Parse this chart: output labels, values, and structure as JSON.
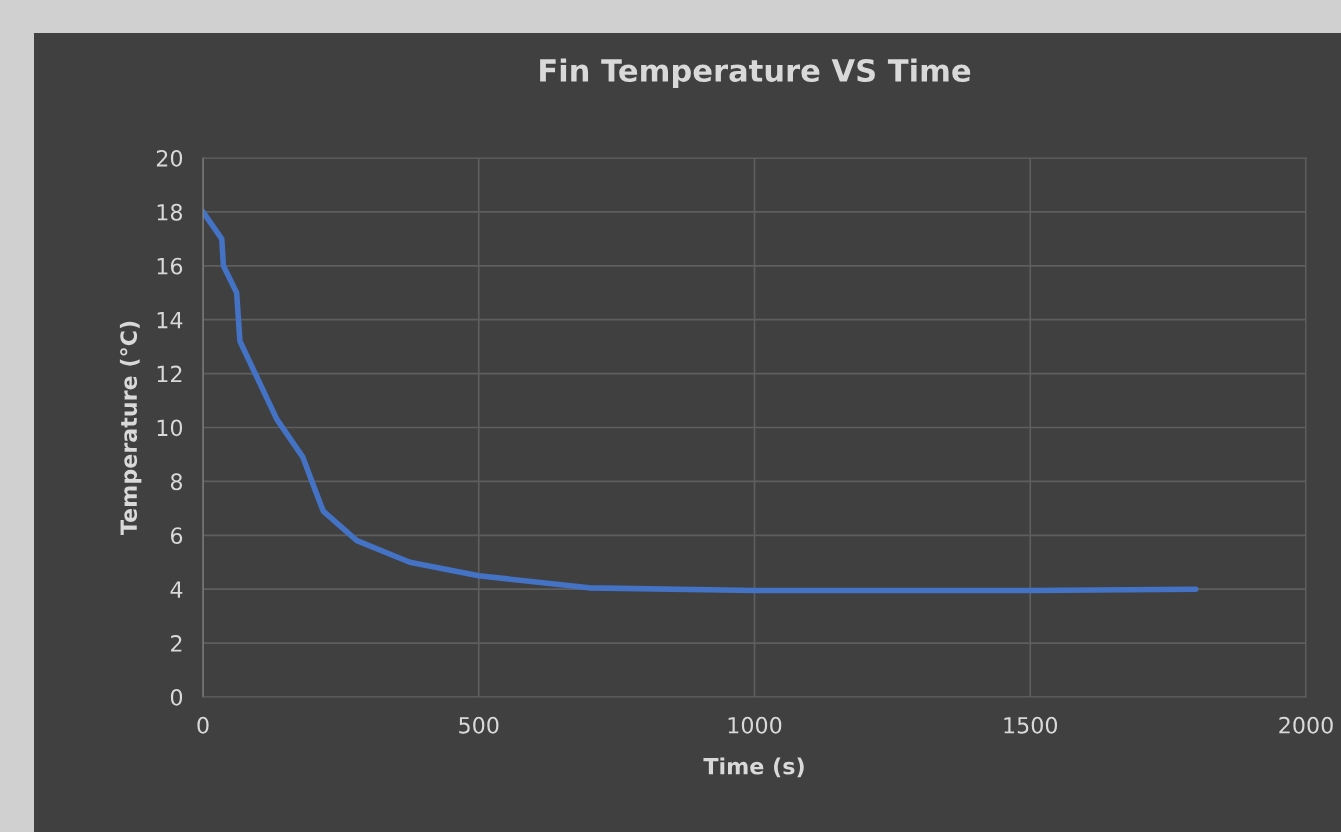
{
  "chart_data": {
    "type": "line",
    "title": "Fin Temperature VS Time",
    "xlabel": "Time (s)",
    "ylabel": "Temperature (°C)",
    "x": [
      0,
      34,
      37,
      61,
      67,
      134,
      181,
      203,
      218,
      279,
      375,
      500,
      700,
      1000,
      1500,
      1800
    ],
    "series": [
      {
        "color": "#4472c4",
        "values": [
          18,
          17,
          16,
          15,
          13.2,
          10.3,
          8.9,
          7.7,
          6.9,
          5.8,
          5.0,
          4.5,
          4.05,
          3.95,
          3.95,
          4.0
        ]
      }
    ],
    "xlim": [
      0,
      2000
    ],
    "xticks": [
      0,
      500,
      1000,
      1500,
      2000
    ],
    "ylim": [
      0,
      20
    ],
    "yticks": [
      0,
      2,
      4,
      6,
      8,
      10,
      12,
      14,
      16,
      18,
      20
    ],
    "grid": true,
    "marker": "none",
    "line_style": "solid"
  }
}
